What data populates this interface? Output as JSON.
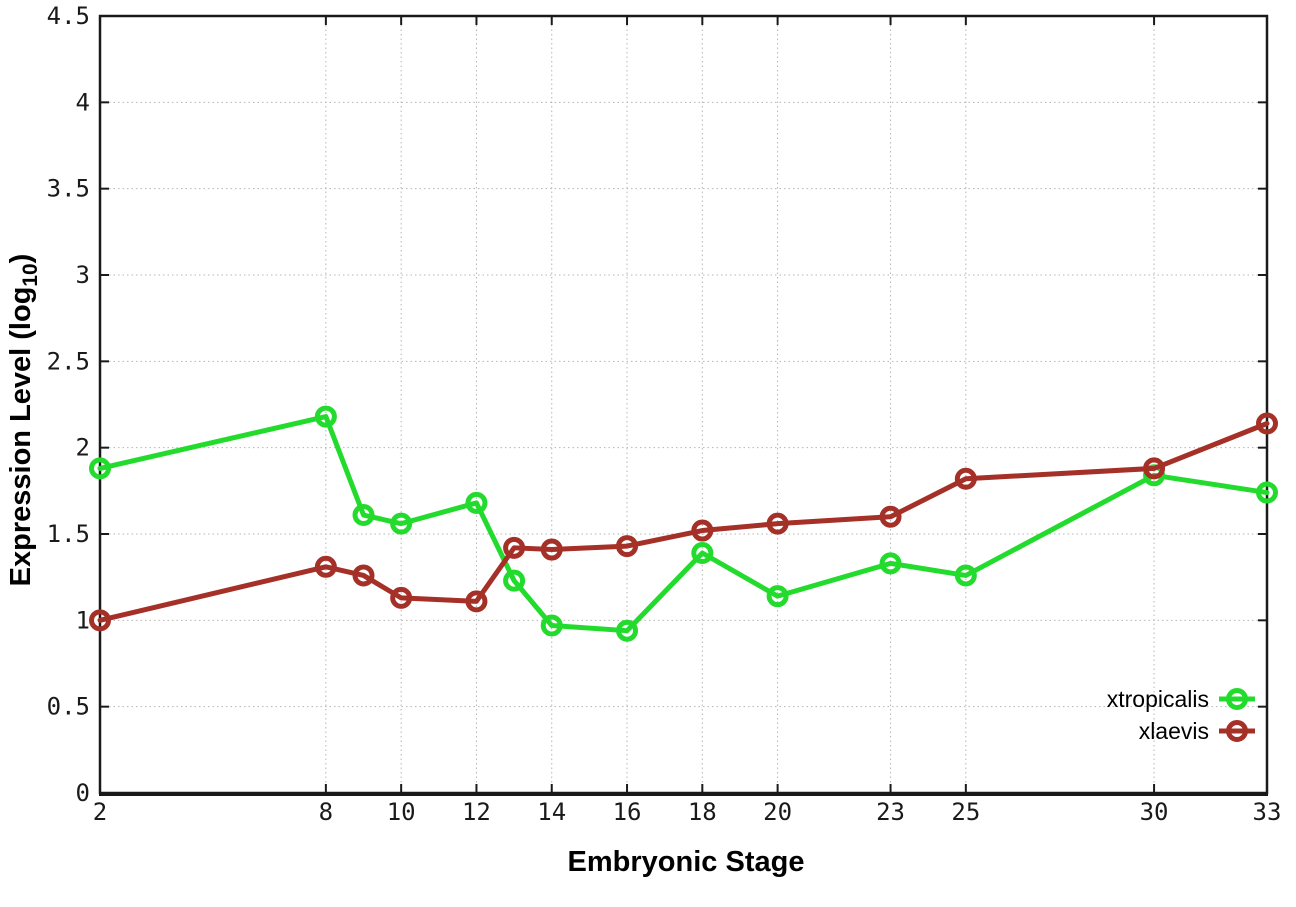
{
  "chart_data": {
    "type": "line",
    "x": [
      2,
      8,
      9,
      10,
      12,
      13,
      14,
      16,
      18,
      20,
      23,
      25,
      30,
      33
    ],
    "series": [
      {
        "name": "xtropicalis",
        "color": "#22db2c",
        "values": [
          1.88,
          2.18,
          1.61,
          1.56,
          1.68,
          1.23,
          0.97,
          0.94,
          1.39,
          1.14,
          1.33,
          1.26,
          1.84,
          1.74
        ]
      },
      {
        "name": "xlaevis",
        "color": "#a53028",
        "values": [
          1.0,
          1.31,
          1.26,
          1.13,
          1.11,
          1.42,
          1.41,
          1.43,
          1.52,
          1.56,
          1.6,
          1.82,
          1.88,
          2.14
        ]
      }
    ],
    "title": "",
    "xlabel": "Embryonic Stage",
    "ylabel": {
      "pre": "Expression Level (log",
      "sub": "10",
      "post": ")"
    },
    "xlim": [
      2,
      33
    ],
    "ylim": [
      0,
      4.5
    ],
    "xticks": {
      "values": [
        2,
        8,
        10,
        12,
        14,
        16,
        18,
        20,
        23,
        25,
        30,
        33
      ],
      "labels": [
        "2",
        "8",
        "10",
        "12",
        "14",
        "16",
        "18",
        "20",
        "23",
        "25",
        "30",
        "33"
      ]
    },
    "yticks": {
      "values": [
        0,
        0.5,
        1,
        1.5,
        2,
        2.5,
        3,
        3.5,
        4,
        4.5
      ],
      "labels": [
        "0",
        "0.5",
        "1",
        "1.5",
        "2",
        "2.5",
        "3",
        "3.5",
        "4",
        "4.5"
      ]
    },
    "grid": true,
    "grid_color": "#b5b5b5",
    "border_color": "#1a1a1a",
    "marker": "open-circle",
    "legend": {
      "position": "bottom-right",
      "entries": [
        "xtropicalis",
        "xlaevis"
      ]
    }
  }
}
